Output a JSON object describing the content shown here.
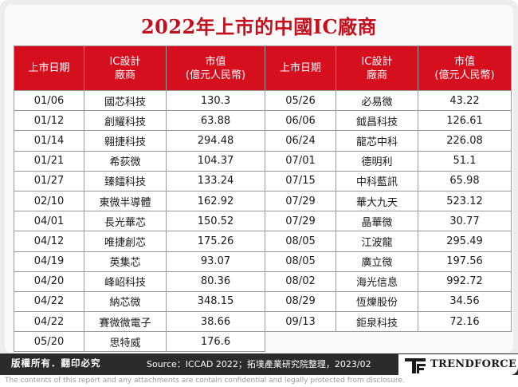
{
  "title": "2022年上市的中國IC廠商",
  "headers": {
    "date": "上市日期",
    "company_line1": "IC設計",
    "company_line2": "廠商",
    "value_line1": "市值",
    "value_line2": "(億元人民幣)"
  },
  "left_rows": [
    {
      "date": "01/06",
      "company": "國芯科技",
      "value": "130.3"
    },
    {
      "date": "01/12",
      "company": "創耀科技",
      "value": "63.88"
    },
    {
      "date": "01/14",
      "company": "翱捷科技",
      "value": "294.48"
    },
    {
      "date": "01/21",
      "company": "希荻微",
      "value": "104.37"
    },
    {
      "date": "01/27",
      "company": "臻鐳科技",
      "value": "133.24"
    },
    {
      "date": "02/10",
      "company": "東微半導體",
      "value": "162.92"
    },
    {
      "date": "04/01",
      "company": "長光華芯",
      "value": "150.52"
    },
    {
      "date": "04/12",
      "company": "唯捷創芯",
      "value": "175.26"
    },
    {
      "date": "04/19",
      "company": "英集芯",
      "value": "93.07"
    },
    {
      "date": "04/20",
      "company": "峰岹科技",
      "value": "80.36"
    },
    {
      "date": "04/22",
      "company": "納芯微",
      "value": "348.15"
    },
    {
      "date": "04/22",
      "company": "賽微微電子",
      "value": "38.66"
    },
    {
      "date": "05/20",
      "company": "思特威",
      "value": "176.6"
    }
  ],
  "right_rows": [
    {
      "date": "05/26",
      "company": "必易微",
      "value": "43.22"
    },
    {
      "date": "06/06",
      "company": "鉞昌科技",
      "value": "126.61"
    },
    {
      "date": "06/24",
      "company": "龍芯中科",
      "value": "226.08"
    },
    {
      "date": "07/01",
      "company": "德明利",
      "value": "51.1"
    },
    {
      "date": "07/15",
      "company": "中科藍訊",
      "value": "65.98"
    },
    {
      "date": "07/29",
      "company": "華大九天",
      "value": "523.12"
    },
    {
      "date": "07/29",
      "company": "晶華微",
      "value": "30.77"
    },
    {
      "date": "08/05",
      "company": "江波龍",
      "value": "295.49"
    },
    {
      "date": "08/05",
      "company": "廣立微",
      "value": "197.56"
    },
    {
      "date": "08/02",
      "company": "海光信息",
      "value": "992.72"
    },
    {
      "date": "08/29",
      "company": "恆爍股份",
      "value": "34.56"
    },
    {
      "date": "09/13",
      "company": "鉅泉科技",
      "value": "72.16"
    }
  ],
  "footer": {
    "copyright": "版權所有．翻印必究",
    "source": "Source：ICCAD 2022；拓墣產業研究院整理，2023/02",
    "logo_text": "TRENDFORCE",
    "disclaimer": "The contents of this report and any attachments are contain confidential and legally protected from disclosure."
  },
  "colors": {
    "accent_red": "#d50f1e",
    "title_red": "#c40f1c",
    "footer_dark": "#2b2b2b"
  }
}
